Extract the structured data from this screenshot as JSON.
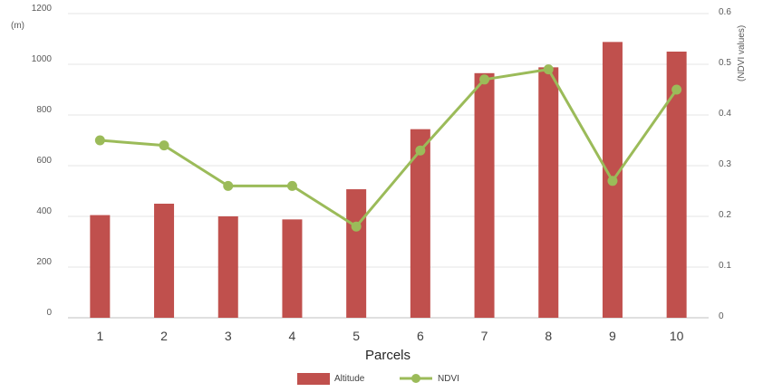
{
  "chart_data": {
    "type": "bar",
    "categories": [
      "1",
      "2",
      "3",
      "4",
      "5",
      "6",
      "7",
      "8",
      "9",
      "10"
    ],
    "series": [
      {
        "name": "Altitude",
        "kind": "bar",
        "axis": "left",
        "color": "#c0504d",
        "values": [
          405,
          450,
          400,
          388,
          507,
          744,
          965,
          988,
          1088,
          1050
        ]
      },
      {
        "name": "NDVI",
        "kind": "line",
        "axis": "right",
        "color": "#9bbb59",
        "values": [
          0.35,
          0.34,
          0.26,
          0.26,
          0.18,
          0.33,
          0.47,
          0.49,
          0.27,
          0.45
        ]
      }
    ],
    "xlabel": "Parcels",
    "ylabel_left": "(m)",
    "ylabel_right": "(NDVI values)",
    "ylim_left": [
      0,
      1200
    ],
    "ylim_right": [
      0,
      0.6
    ],
    "yticks_left": [
      "0",
      "200",
      "400",
      "600",
      "800",
      "1000",
      "1200"
    ],
    "yticks_right": [
      "0",
      "0.1",
      "0.2",
      "0.3",
      "0.4",
      "0.5",
      "0.6"
    ],
    "grid": true,
    "legend_position": "bottom"
  }
}
